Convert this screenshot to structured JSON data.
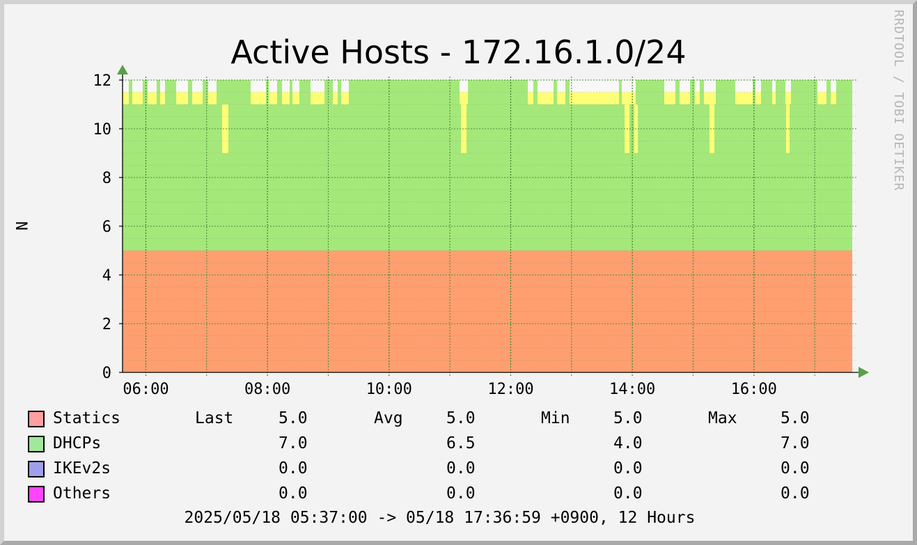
{
  "chart_data": {
    "type": "area",
    "title": "Active Hosts - 172.16.1.0/24",
    "ylabel": "N",
    "watermark": "RRDTOOL / TOBI OETIKER",
    "ylim": [
      0,
      12
    ],
    "yticks": [
      "0",
      "2",
      "4",
      "6",
      "8",
      "10",
      "12"
    ],
    "xlim": [
      "05:37:00",
      "17:36:59"
    ],
    "xticks": [
      "06:00",
      "08:00",
      "10:00",
      "12:00",
      "14:00",
      "16:00"
    ],
    "grid": true,
    "series": [
      {
        "name": "Statics",
        "color": "#ff9f70",
        "values": [
          5.0
        ]
      },
      {
        "name": "DHCPs",
        "color": "#a4e87a"
      },
      {
        "name": "IKEv2s",
        "color": "#9f9fea"
      },
      {
        "name": "Others",
        "color": "#ff44ff"
      }
    ],
    "upper_band": {
      "color": "#ffff77",
      "baseline": 11,
      "levels": [
        11,
        11.5,
        12
      ],
      "dips_to": 9
    },
    "legend": {
      "headers": {
        "last": "Last",
        "avg": "Avg",
        "min": "Min",
        "max": "Max"
      },
      "rows": [
        {
          "name": "Statics",
          "color": "#ff9f9f",
          "last": "5.0",
          "avg": "5.0",
          "min": "5.0",
          "max": "5.0"
        },
        {
          "name": "DHCPs",
          "color": "#a0e89a",
          "last": "7.0",
          "avg": "6.5",
          "min": "4.0",
          "max": "7.0"
        },
        {
          "name": "IKEv2s",
          "color": "#9f9fea",
          "last": "0.0",
          "avg": "0.0",
          "min": "0.0",
          "max": "0.0"
        },
        {
          "name": "Others",
          "color": "#ff44ff",
          "last": "0.0",
          "avg": "0.0",
          "min": "0.0",
          "max": "0.0"
        }
      ]
    },
    "footer": "2025/05/18 05:37:00 -> 05/18 17:36:59 +0900, 12 Hours"
  }
}
